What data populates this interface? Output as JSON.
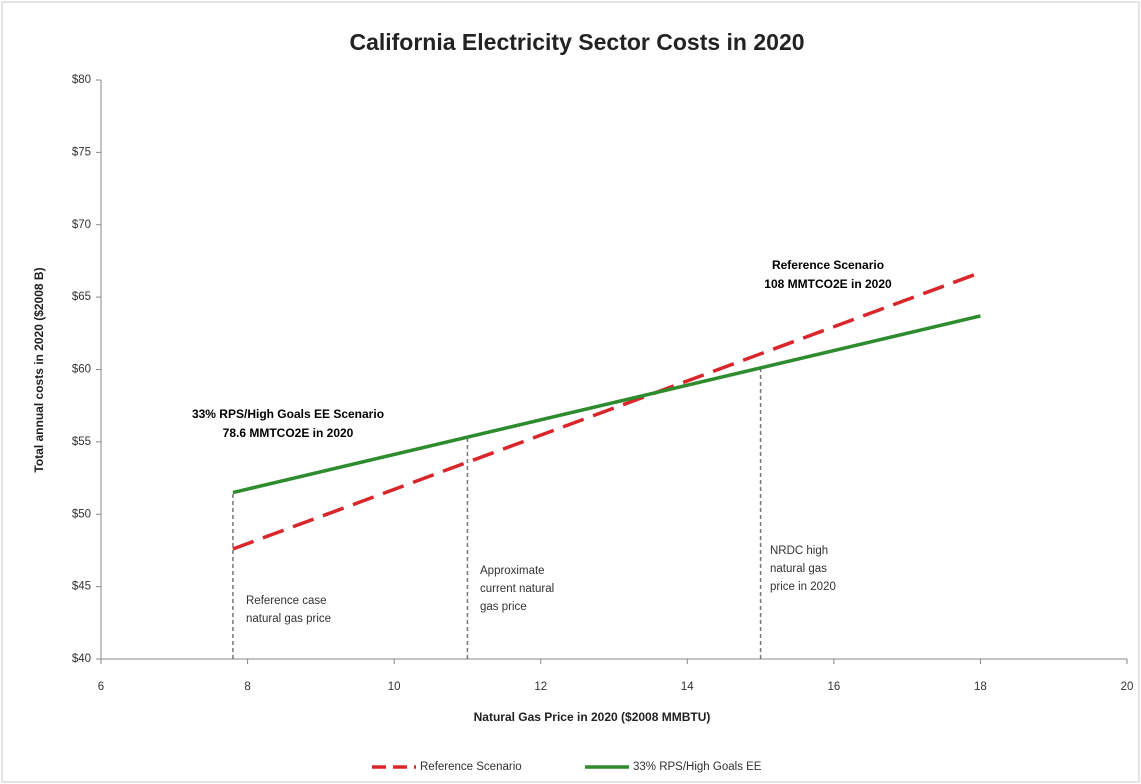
{
  "chart_data": {
    "type": "line",
    "title": "California Electricity Sector Costs in 2020",
    "x_label": "Natural Gas Price in 2020 ($2008 MMBTU)",
    "y_label": "Total annual costs in 2020 ($2008 B)",
    "xlim": [
      6,
      20
    ],
    "xticks": [
      6,
      8,
      10,
      12,
      14,
      16,
      18,
      20
    ],
    "ylim": [
      40,
      80
    ],
    "yticks": [
      {
        "value": 40,
        "label": "$40"
      },
      {
        "value": 45,
        "label": "$45"
      },
      {
        "value": 50,
        "label": "$50"
      },
      {
        "value": 55,
        "label": "$55"
      },
      {
        "value": 60,
        "label": "$60"
      },
      {
        "value": 65,
        "label": "$65"
      },
      {
        "value": 70,
        "label": "$70"
      },
      {
        "value": 75,
        "label": "$75"
      },
      {
        "value": 80,
        "label": "$80"
      }
    ],
    "grid": false,
    "series": [
      {
        "name": "Reference Scenario",
        "color": "#d9262b",
        "dashed": true,
        "x": [
          7.8,
          18
        ],
        "values": [
          47.6,
          66.7
        ]
      },
      {
        "name": "33% RPS/High Goals EE",
        "color": "#2e8b2e",
        "dashed": false,
        "x": [
          7.8,
          18
        ],
        "values": [
          51.5,
          63.7
        ]
      }
    ],
    "markers": [
      {
        "x": 7.8,
        "top": 51.5,
        "label": [
          "Reference case",
          "natural gas price"
        ]
      },
      {
        "x": 11,
        "top": 55.3,
        "label": [
          "Approximate",
          "current natural",
          "gas price"
        ]
      },
      {
        "x": 15,
        "top": 60.3,
        "label": [
          "NRDC high",
          "natural gas",
          "price in 2020"
        ]
      }
    ],
    "annotations": [
      {
        "lines": [
          "33% RPS/High Goals EE Scenario",
          "78.6 MMTCO2E in 2020"
        ]
      },
      {
        "lines": [
          "Reference Scenario",
          "108 MMTCO2E in 2020"
        ]
      }
    ]
  }
}
